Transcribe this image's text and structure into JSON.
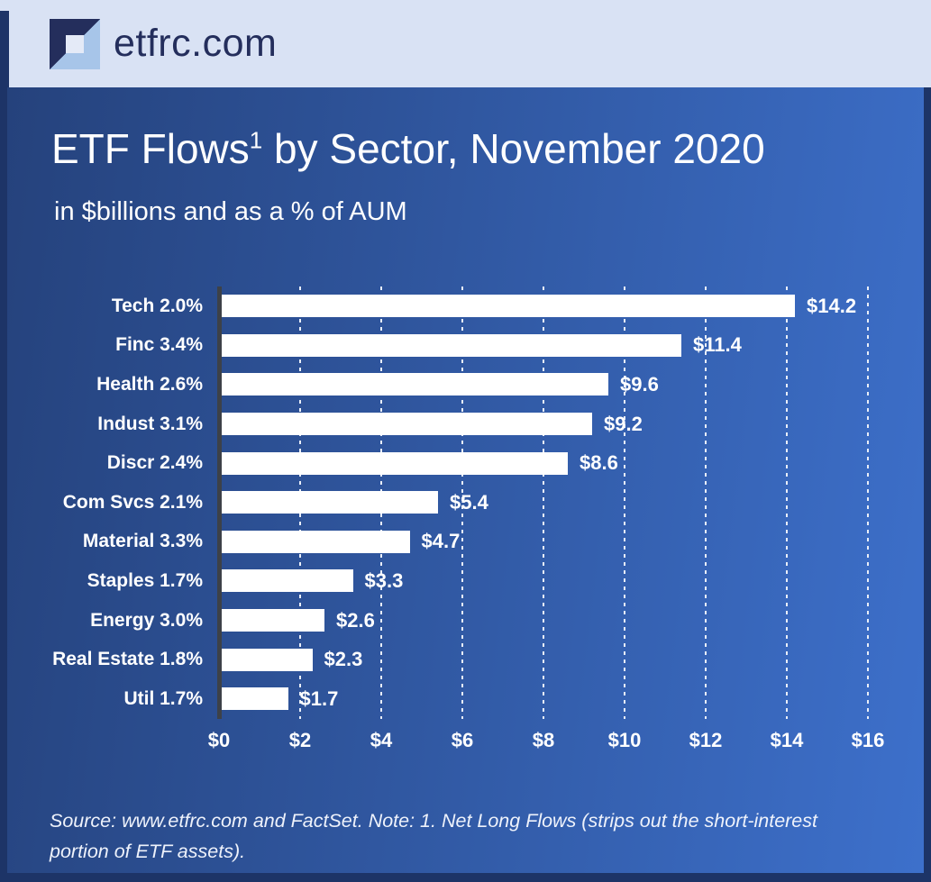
{
  "header": {
    "brand": "etfrc.com"
  },
  "footer": {
    "source_note": "Source: www.etfrc.com and FactSet. Note: 1. Net Long Flows (strips out the short-interest portion of ETF assets)."
  },
  "colors": {
    "frame": "#1d3467",
    "header_bg": "#d9e2f4",
    "brand_navy": "#242e5c",
    "logo_light": "#a7c5e9",
    "logo_center": "#e4eaf7",
    "grad_left": "#25427c",
    "grad_right": "#3d70cb",
    "bar": "#ffffff",
    "axis": "#3d4148",
    "grid": "#e9eef8",
    "text": "#ffffff"
  },
  "chart_data": {
    "type": "bar",
    "orientation": "horizontal",
    "title_prefix": "ETF Flows",
    "title_note_marker": "1",
    "title_suffix": " by Sector, November 2020",
    "subtitle": "in $billions and as a % of AUM",
    "categories": [
      "Tech 2.0%",
      "Finc 3.4%",
      "Health 2.6%",
      "Indust 3.1%",
      "Discr 2.4%",
      "Com Svcs 2.1%",
      "Material 3.3%",
      "Staples 1.7%",
      "Energy 3.0%",
      "Real Estate 1.8%",
      "Util 1.7%"
    ],
    "values": [
      14.2,
      11.4,
      9.6,
      9.2,
      8.6,
      5.4,
      4.7,
      3.3,
      2.6,
      2.3,
      1.7
    ],
    "value_labels": [
      "$14.2",
      "$11.4",
      "$9.6",
      "$9.2",
      "$8.6",
      "$5.4",
      "$4.7",
      "$3.3",
      "$2.6",
      "$2.3",
      "$1.7"
    ],
    "x_ticks": [
      "$0",
      "$2",
      "$4",
      "$6",
      "$8",
      "$10",
      "$12",
      "$14",
      "$16"
    ],
    "xlim": [
      0,
      16
    ],
    "xlabel": "",
    "ylabel": "",
    "legend": "none",
    "grid": "vertical-dashed",
    "bar_color": "#ffffff",
    "background": "blue-gradient"
  }
}
